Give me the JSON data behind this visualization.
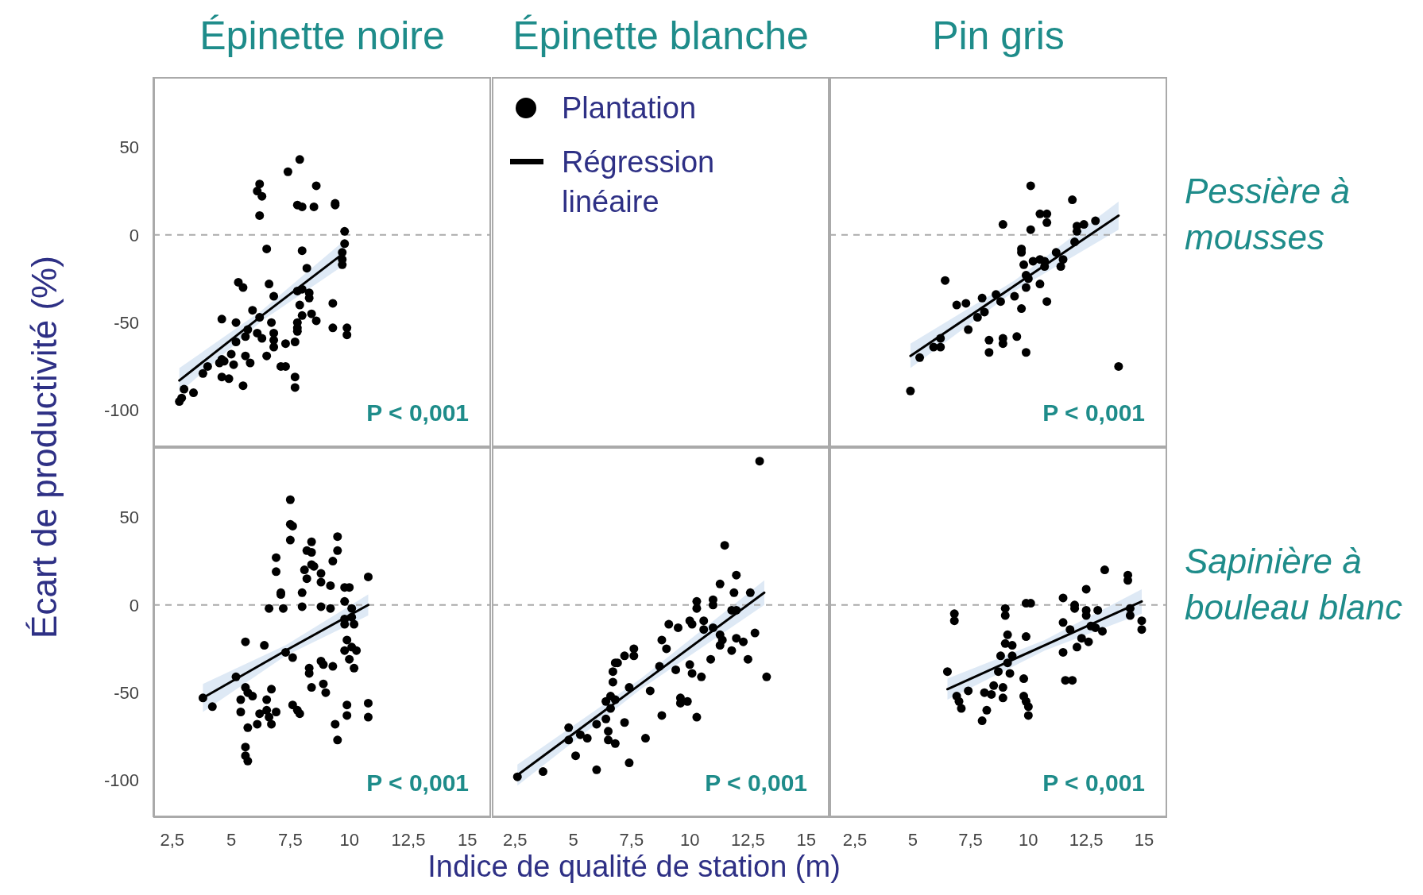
{
  "chart_data": [
    {
      "type": "scatter",
      "title": "Épinette noire",
      "ylabel": "Écart de productivité (%)",
      "annotations": [
        "P < 0,001"
      ],
      "marker": "circle",
      "tick_labels": "y",
      "xlim": [
        1.7,
        16
      ],
      "ylim": [
        -121,
        90
      ],
      "yticks": [
        -100,
        -50,
        0,
        50
      ],
      "ref_lines": [
        {
          "axis": "y",
          "value": 0,
          "color": "#aaaaaa",
          "line_style": "dashed"
        }
      ],
      "series": [
        {
          "color": "#000000",
          "x": [
            7.9,
            7.4,
            8.6,
            6.2,
            6.1,
            6.3,
            7.8,
            8.0,
            8.5,
            9.4,
            9.4,
            6.2,
            9.8,
            9.8,
            9.7,
            9.7,
            9.7,
            6.5,
            8.0,
            8.2,
            5.3,
            5.5,
            6.6,
            6.8,
            7.8,
            8.0,
            8.3,
            8.3,
            9.3,
            7.9,
            5.9,
            6.2,
            8.0,
            8.4,
            8.6,
            4.6,
            5.2,
            6.7,
            7.8,
            7.8,
            7.8,
            9.3,
            9.9,
            9.9,
            5.7,
            5.6,
            6.1,
            6.3,
            6.8,
            6.8,
            6.8,
            7.3,
            7.7,
            5.2,
            5.0,
            5.6,
            5.8,
            6.5,
            4.6,
            4.5,
            4.7,
            5.1,
            7.1,
            7.3,
            4.0,
            3.8,
            4.6,
            4.9,
            5.5,
            7.7,
            7.7,
            3.0,
            3.4,
            2.9,
            2.8
          ],
          "values": [
            43,
            36,
            28,
            29,
            25,
            22,
            17,
            16,
            16,
            18,
            17,
            11,
            2,
            -5,
            -10,
            -14,
            -17,
            -8,
            -9,
            -19,
            -27,
            -30,
            -28,
            -35,
            -32,
            -31,
            -33,
            -36,
            -39,
            -40,
            -43,
            -47,
            -46,
            -45,
            -49,
            -48,
            -50,
            -50,
            -50,
            -53,
            -55,
            -53,
            -53,
            -57,
            -54,
            -58,
            -56,
            -59,
            -56,
            -60,
            -64,
            -62,
            -61,
            -61,
            -68,
            -69,
            -73,
            -69,
            -71,
            -73,
            -72,
            -74,
            -75,
            -75,
            -75,
            -79,
            -81,
            -82,
            -86,
            -81,
            -87,
            -88,
            -90,
            -93,
            -95
          ]
        },
        {
          "type": "line",
          "marker": "none",
          "color": "#000000",
          "x": [
            2.8,
            6.3,
            9.8
          ],
          "values": [
            -83,
            -46,
            -10
          ],
          "lower": [
            -90,
            -49,
            -17
          ],
          "upper": [
            -76,
            -43,
            -3
          ]
        }
      ]
    },
    {
      "type": "other",
      "title": "Épinette blanche",
      "legend": "top left",
      "series": [
        {
          "name": "Plantation",
          "color": "#000000"
        },
        {
          "name": "Régression linéaire",
          "type": "line",
          "color": "#000000"
        }
      ]
    },
    {
      "type": "scatter",
      "title": "Pin gris",
      "y2label": "Pessière à mousses",
      "annotations": [
        "P < 0,001"
      ],
      "marker": "circle",
      "tick_labels": false,
      "xlim": [
        1.4,
        16
      ],
      "ylim": [
        -121,
        90
      ],
      "ref_lines": [
        {
          "axis": "y",
          "value": 0,
          "color": "#aaaaaa",
          "line_style": "dashed"
        }
      ],
      "series": [
        {
          "color": "#000000",
          "x": [
            10.1,
            11.9,
            10.5,
            10.8,
            10.8,
            8.9,
            10.1,
            12.9,
            12.4,
            12.1,
            12.1,
            12.0,
            9.7,
            9.7,
            9.8,
            10.2,
            10.5,
            10.7,
            10.7,
            11.2,
            11.5,
            11.4,
            9.9,
            10.0,
            9.9,
            10.5,
            10.8,
            6.4,
            6.9,
            7.3,
            8.0,
            8.6,
            8.8,
            9.4,
            9.7,
            8.1,
            7.8,
            7.4,
            6.2,
            6.2,
            5.9,
            5.3,
            8.3,
            8.3,
            8.9,
            8.9,
            9.5,
            9.9,
            13.9,
            4.9
          ],
          "values": [
            28,
            20,
            12,
            12,
            7,
            6,
            3,
            8,
            6,
            5,
            2,
            -4,
            -8,
            -10,
            -17,
            -15,
            -14,
            -15,
            -18,
            -10,
            -14,
            -18,
            -23,
            -25,
            -30,
            -28,
            -38,
            -26,
            -40,
            -39,
            -36,
            -34,
            -38,
            -35,
            -42,
            -44,
            -47,
            -54,
            -59,
            -64,
            -64,
            -70,
            -60,
            -67,
            -59,
            -62,
            -58,
            -67,
            -75,
            -89
          ]
        },
        {
          "type": "line",
          "marker": "none",
          "color": "#000000",
          "x": [
            4.9,
            9.4,
            13.9
          ],
          "values": [
            -69,
            -29,
            11
          ],
          "lower": [
            -76,
            -32,
            3
          ],
          "upper": [
            -62,
            -26,
            19
          ]
        }
      ]
    },
    {
      "type": "scatter",
      "annotations": [
        "P < 0,001"
      ],
      "marker": "circle",
      "xlim": [
        1.7,
        16
      ],
      "ylim": [
        -121,
        90
      ],
      "xticks": [
        {
          "value": 2.5,
          "label": "2,5"
        },
        5,
        {
          "value": 7.5,
          "label": "7,5"
        },
        10,
        {
          "value": 12.5,
          "label": "12,5"
        },
        15
      ],
      "yticks": [
        -100,
        -50,
        0,
        50
      ],
      "ref_lines": [
        {
          "axis": "y",
          "value": 0,
          "color": "#aaaaaa",
          "line_style": "dashed"
        }
      ],
      "series": [
        {
          "color": "#000000",
          "x": [
            7.5,
            7.5,
            7.6,
            7.5,
            8.4,
            8.2,
            8.4,
            9.5,
            9.5,
            9.3,
            6.9,
            6.9,
            8.4,
            8.5,
            8.1,
            8.2,
            8.8,
            8.8,
            9.2,
            9.8,
            10.0,
            10.8,
            7.1,
            7.1,
            8.0,
            6.6,
            7.2,
            8.0,
            8.8,
            9.2,
            9.8,
            10.1,
            9.8,
            10.1,
            10.2,
            9.8,
            9.9,
            10.1,
            9.8,
            10.3,
            10.0,
            10.2,
            5.6,
            6.4,
            7.3,
            7.6,
            8.8,
            8.9,
            9.3,
            8.3,
            8.3,
            8.9,
            8.4,
            9.0,
            5.2,
            5.6,
            5.7,
            5.9,
            3.8,
            4.2,
            5.4,
            5.4,
            6.7,
            6.5,
            6.5,
            6.9,
            6.6,
            6.2,
            6.1,
            6.7,
            5.7,
            7.6,
            7.8,
            7.9,
            9.9,
            9.9,
            10.8,
            10.8,
            9.4,
            9.5,
            5.6,
            5.6,
            5.7
          ],
          "values": [
            60,
            46,
            45,
            37,
            36,
            31,
            30,
            39,
            31,
            25,
            27,
            19,
            23,
            22,
            20,
            15,
            18,
            13,
            11,
            10,
            10,
            16,
            7,
            6,
            7,
            -2,
            -2,
            -1,
            -1,
            -2,
            2,
            -2,
            -8,
            -7,
            -11,
            -11,
            -20,
            -24,
            -26,
            -26,
            -31,
            -36,
            -21,
            -23,
            -27,
            -30,
            -32,
            -34,
            -35,
            -36,
            -39,
            -45,
            -47,
            -50,
            -41,
            -47,
            -50,
            -52,
            -53,
            -58,
            -54,
            -61,
            -48,
            -54,
            -60,
            -61,
            -64,
            -62,
            -68,
            -68,
            -70,
            -57,
            -60,
            -62,
            -57,
            -63,
            -56,
            -64,
            -68,
            -77,
            -81,
            -86,
            -89
          ]
        },
        {
          "type": "line",
          "marker": "none",
          "color": "#000000",
          "x": [
            3.8,
            7.3,
            10.8
          ],
          "values": [
            -53,
            -26,
            0
          ],
          "lower": [
            -61,
            -29,
            -6
          ],
          "upper": [
            -45,
            -23,
            6
          ]
        }
      ]
    },
    {
      "type": "scatter",
      "xlabel": "Indice de qualité de station (m)",
      "annotations": [
        "P < 0,001"
      ],
      "marker": "circle",
      "tick_labels": "x",
      "xlim": [
        1.5,
        16
      ],
      "ylim": [
        -121,
        90
      ],
      "xticks": [
        {
          "value": 2.5,
          "label": "2,5"
        },
        5,
        {
          "value": 7.5,
          "label": "7,5"
        },
        10,
        {
          "value": 12.5,
          "label": "12,5"
        },
        15
      ],
      "ref_lines": [
        {
          "axis": "y",
          "value": 0,
          "color": "#aaaaaa",
          "line_style": "dashed"
        }
      ],
      "series": [
        {
          "color": "#000000",
          "x": [
            13.0,
            11.5,
            12.0,
            11.3,
            11.9,
            12.6,
            10.3,
            10.3,
            11.0,
            11.0,
            11.8,
            12.0,
            9.1,
            9.5,
            10.0,
            10.1,
            10.6,
            10.6,
            11.0,
            11.3,
            11.4,
            11.3,
            12.0,
            12.3,
            12.8,
            11.8,
            12.5,
            10.9,
            13.3,
            8.8,
            9.0,
            7.6,
            7.6,
            7.2,
            6.9,
            6.8,
            6.7,
            8.7,
            9.4,
            10.0,
            10.1,
            10.5,
            6.7,
            7.4,
            8.3,
            6.6,
            6.4,
            6.8,
            6.6,
            6.4,
            9.6,
            9.6,
            9.9,
            8.8,
            10.3,
            7.2,
            6.0,
            6.5,
            6.5,
            6.8,
            8.1,
            4.8,
            4.8,
            5.3,
            5.6,
            5.1,
            6.0,
            7.4,
            3.7,
            2.6
          ],
          "values": [
            82,
            34,
            17,
            12,
            7,
            7,
            2,
            -2,
            3,
            0,
            -3,
            -3,
            -11,
            -13,
            -9,
            -11,
            -9,
            -14,
            -13,
            -17,
            -20,
            -23,
            -19,
            -21,
            -16,
            -26,
            -31,
            -31,
            -41,
            -20,
            -25,
            -25,
            -29,
            -29,
            -33,
            -33,
            -38,
            -35,
            -37,
            -34,
            -39,
            -41,
            -44,
            -47,
            -49,
            -52,
            -55,
            -54,
            -59,
            -65,
            -53,
            -56,
            -55,
            -63,
            -64,
            -67,
            -68,
            -72,
            -77,
            -79,
            -76,
            -70,
            -77,
            -74,
            -76,
            -86,
            -94,
            -90,
            -95,
            -98
          ]
        },
        {
          "type": "line",
          "marker": "none",
          "color": "#000000",
          "x": [
            2.6,
            7.9,
            13.2
          ],
          "values": [
            -97,
            -45,
            7
          ],
          "lower": [
            -103,
            -48,
            0
          ],
          "upper": [
            -91,
            -42,
            14
          ]
        }
      ]
    },
    {
      "type": "scatter",
      "y2label": "Sapinière à bouleau blanc",
      "annotations": [
        "P < 0,001"
      ],
      "marker": "circle",
      "tick_labels": "x",
      "xlim": [
        1.4,
        16
      ],
      "ylim": [
        -121,
        90
      ],
      "xticks": [
        {
          "value": 2.5,
          "label": "2,5"
        },
        5,
        {
          "value": 7.5,
          "label": "7,5"
        },
        10,
        {
          "value": 12.5,
          "label": "12,5"
        },
        15
      ],
      "ref_lines": [
        {
          "axis": "y",
          "value": 0,
          "color": "#aaaaaa",
          "line_style": "dashed"
        }
      ],
      "series": [
        {
          "color": "#000000",
          "x": [
            13.3,
            14.3,
            14.3,
            12.5,
            11.5,
            9.9,
            10.1,
            9.0,
            9.0,
            12.0,
            12.0,
            12.5,
            12.5,
            13.0,
            14.4,
            14.4,
            14.9,
            14.9,
            6.8,
            6.8,
            11.5,
            11.8,
            12.7,
            12.9,
            13.2,
            9.1,
            9.0,
            9.3,
            9.9,
            12.3,
            12.6,
            12.1,
            11.5,
            8.8,
            9.3,
            9.1,
            8.7,
            9.2,
            9.8,
            6.5,
            11.6,
            11.9,
            8.5,
            8.9,
            7.4,
            8.1,
            8.4,
            6.9,
            7.0,
            8.9,
            9.8,
            9.9,
            10.0,
            8.2,
            7.1,
            10.0,
            8.0
          ],
          "values": [
            20,
            17,
            14,
            9,
            4,
            1,
            1,
            -2,
            -6,
            0,
            -2,
            -3,
            -6,
            -3,
            -2,
            -6,
            -9,
            -14,
            -5,
            -9,
            -10,
            -14,
            -12,
            -13,
            -15,
            -17,
            -22,
            -23,
            -18,
            -19,
            -21,
            -24,
            -27,
            -29,
            -29,
            -33,
            -38,
            -39,
            -42,
            -38,
            -43,
            -43,
            -46,
            -47,
            -49,
            -50,
            -51,
            -52,
            -55,
            -53,
            -52,
            -55,
            -58,
            -60,
            -59,
            -63,
            -66
          ]
        },
        {
          "type": "line",
          "marker": "none",
          "color": "#000000",
          "x": [
            6.5,
            10.7,
            14.9
          ],
          "values": [
            -48,
            -23,
            2
          ],
          "lower": [
            -54,
            -26,
            -5
          ],
          "upper": [
            -42,
            -20,
            9
          ]
        }
      ]
    }
  ]
}
